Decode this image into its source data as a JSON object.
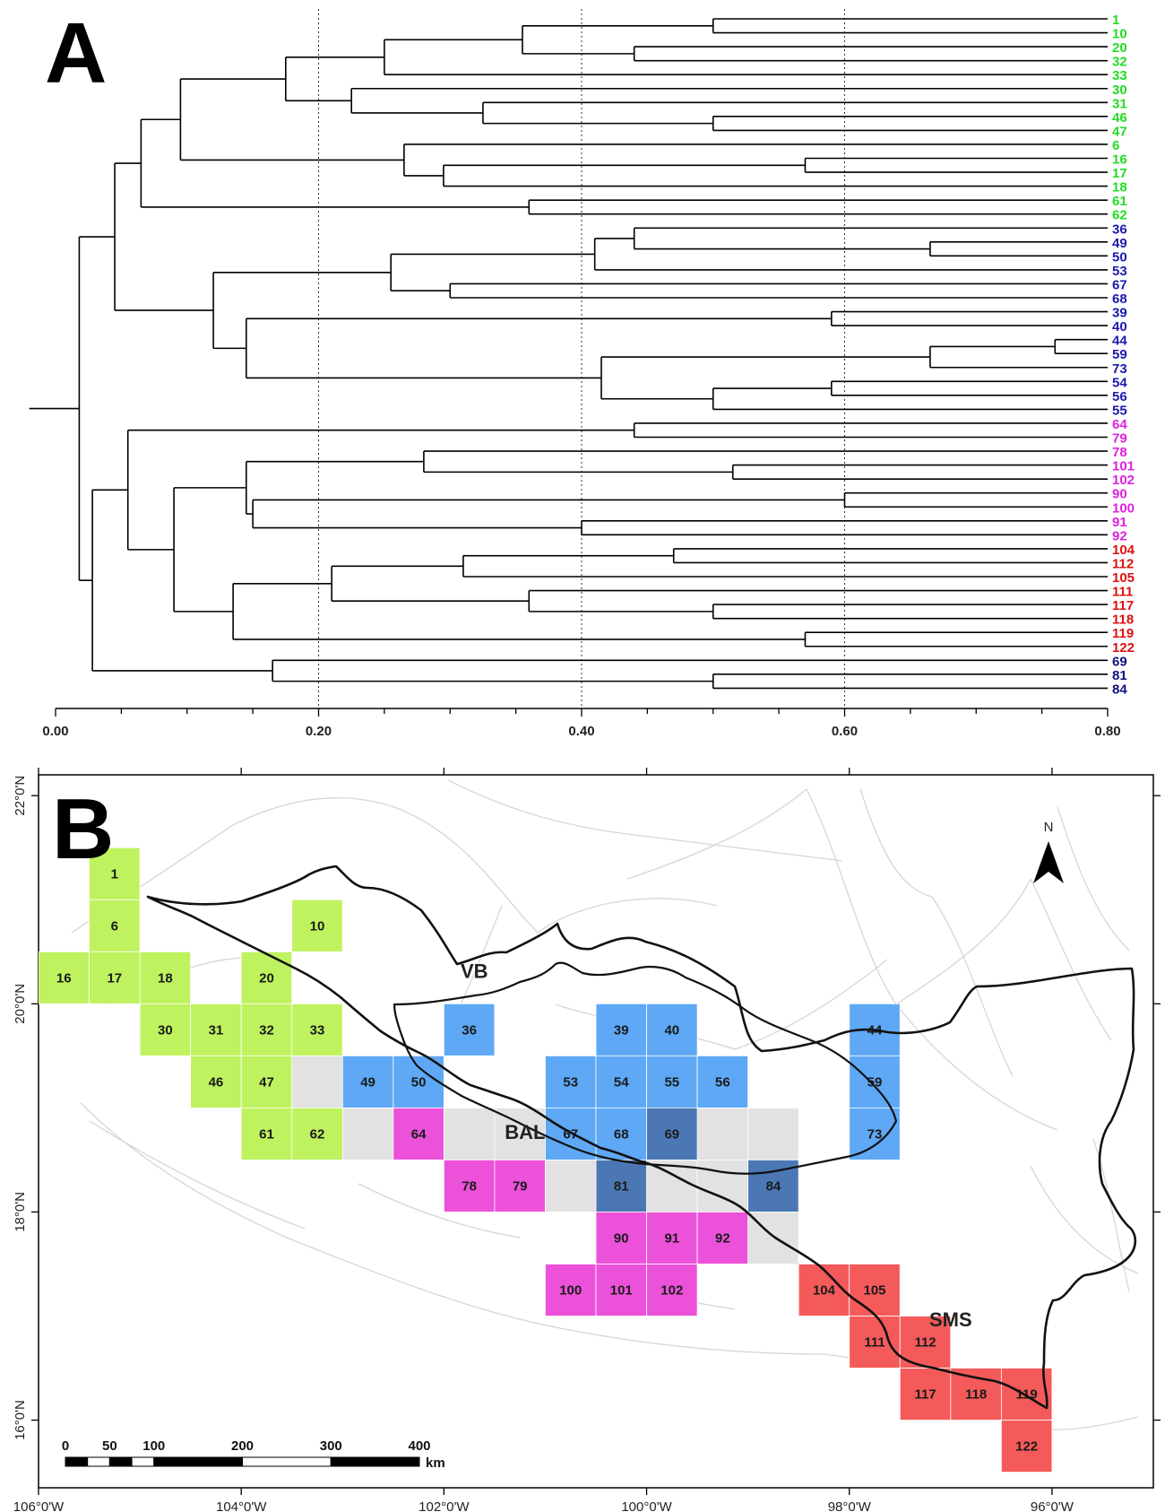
{
  "panel_a": {
    "letter": "A",
    "axis": {
      "ticks": [
        "0.00",
        "0.20",
        "0.40",
        "0.60",
        "0.80"
      ],
      "tick_values": [
        0,
        0.2,
        0.4,
        0.6,
        0.8
      ],
      "dotted_at": [
        0.2,
        0.4,
        0.6
      ],
      "range": [
        0,
        0.8
      ]
    },
    "leaves": [
      {
        "id": "1",
        "group": "green"
      },
      {
        "id": "10",
        "group": "green"
      },
      {
        "id": "20",
        "group": "green"
      },
      {
        "id": "32",
        "group": "green"
      },
      {
        "id": "33",
        "group": "green"
      },
      {
        "id": "30",
        "group": "green"
      },
      {
        "id": "31",
        "group": "green"
      },
      {
        "id": "46",
        "group": "green"
      },
      {
        "id": "47",
        "group": "green"
      },
      {
        "id": "6",
        "group": "green"
      },
      {
        "id": "16",
        "group": "green"
      },
      {
        "id": "17",
        "group": "green"
      },
      {
        "id": "18",
        "group": "green"
      },
      {
        "id": "61",
        "group": "green"
      },
      {
        "id": "62",
        "group": "green"
      },
      {
        "id": "36",
        "group": "blue"
      },
      {
        "id": "49",
        "group": "blue"
      },
      {
        "id": "50",
        "group": "blue"
      },
      {
        "id": "53",
        "group": "blue"
      },
      {
        "id": "67",
        "group": "blue"
      },
      {
        "id": "68",
        "group": "blue"
      },
      {
        "id": "39",
        "group": "blue"
      },
      {
        "id": "40",
        "group": "blue"
      },
      {
        "id": "44",
        "group": "blue"
      },
      {
        "id": "59",
        "group": "blue"
      },
      {
        "id": "73",
        "group": "blue"
      },
      {
        "id": "54",
        "group": "blue"
      },
      {
        "id": "56",
        "group": "blue"
      },
      {
        "id": "55",
        "group": "blue"
      },
      {
        "id": "64",
        "group": "magenta"
      },
      {
        "id": "79",
        "group": "magenta"
      },
      {
        "id": "78",
        "group": "magenta"
      },
      {
        "id": "101",
        "group": "magenta"
      },
      {
        "id": "102",
        "group": "magenta"
      },
      {
        "id": "90",
        "group": "magenta"
      },
      {
        "id": "100",
        "group": "magenta"
      },
      {
        "id": "91",
        "group": "magenta"
      },
      {
        "id": "92",
        "group": "magenta"
      },
      {
        "id": "104",
        "group": "red"
      },
      {
        "id": "112",
        "group": "red"
      },
      {
        "id": "105",
        "group": "red"
      },
      {
        "id": "111",
        "group": "red"
      },
      {
        "id": "117",
        "group": "red"
      },
      {
        "id": "118",
        "group": "red"
      },
      {
        "id": "119",
        "group": "red"
      },
      {
        "id": "122",
        "group": "red"
      },
      {
        "id": "69",
        "group": "navy"
      },
      {
        "id": "81",
        "group": "navy"
      },
      {
        "id": "84",
        "group": "navy"
      }
    ],
    "merges": [
      {
        "i": "1",
        "j": "10",
        "h": 0.5
      },
      {
        "i": "20",
        "j": "32",
        "h": 0.44
      },
      {
        "i": "M1",
        "j": "M2",
        "h": 0.355
      },
      {
        "i": "M3",
        "j": "33",
        "h": 0.25
      },
      {
        "i": "46",
        "j": "47",
        "h": 0.5
      },
      {
        "i": "31",
        "j": "M5",
        "h": 0.325
      },
      {
        "i": "30",
        "j": "M6",
        "h": 0.225
      },
      {
        "i": "M4",
        "j": "M7",
        "h": 0.175
      },
      {
        "i": "16",
        "j": "17",
        "h": 0.57
      },
      {
        "i": "M9",
        "j": "18",
        "h": 0.295
      },
      {
        "i": "6",
        "j": "M10",
        "h": 0.265
      },
      {
        "i": "M8",
        "j": "M11",
        "h": 0.095
      },
      {
        "i": "61",
        "j": "62",
        "h": 0.36
      },
      {
        "i": "M12",
        "j": "M13",
        "h": 0.065
      },
      {
        "i": "49",
        "j": "50",
        "h": 0.665
      },
      {
        "i": "36",
        "j": "M15",
        "h": 0.44
      },
      {
        "i": "M16",
        "j": "53",
        "h": 0.41
      },
      {
        "i": "67",
        "j": "68",
        "h": 0.3
      },
      {
        "i": "M17",
        "j": "M18",
        "h": 0.255
      },
      {
        "i": "39",
        "j": "40",
        "h": 0.59
      },
      {
        "i": "44",
        "j": "59",
        "h": 0.76
      },
      {
        "i": "M21",
        "j": "73",
        "h": 0.665
      },
      {
        "i": "54",
        "j": "56",
        "h": 0.59
      },
      {
        "i": "M23",
        "j": "55",
        "h": 0.5
      },
      {
        "i": "M22",
        "j": "M24",
        "h": 0.415
      },
      {
        "i": "M20",
        "j": "M25",
        "h": 0.145
      },
      {
        "i": "M19",
        "j": "M26",
        "h": 0.12
      },
      {
        "i": "M14",
        "j": "M27",
        "h": 0.045
      },
      {
        "i": "64",
        "j": "79",
        "h": 0.44
      },
      {
        "i": "101",
        "j": "102",
        "h": 0.515
      },
      {
        "i": "78",
        "j": "M30",
        "h": 0.28
      },
      {
        "i": "90",
        "j": "100",
        "h": 0.6
      },
      {
        "i": "91",
        "j": "92",
        "h": 0.4
      },
      {
        "i": "M32",
        "j": "M33",
        "h": 0.15
      },
      {
        "i": "M31",
        "j": "M34",
        "h": 0.145
      },
      {
        "i": "104",
        "j": "112",
        "h": 0.47
      },
      {
        "i": "M36",
        "j": "105",
        "h": 0.31
      },
      {
        "i": "117",
        "j": "118",
        "h": 0.5
      },
      {
        "i": "111",
        "j": "M38",
        "h": 0.36
      },
      {
        "i": "M37",
        "j": "M39",
        "h": 0.21
      },
      {
        "i": "119",
        "j": "122",
        "h": 0.57
      },
      {
        "i": "M40",
        "j": "M41",
        "h": 0.135
      },
      {
        "i": "M35",
        "j": "M42",
        "h": 0.09
      },
      {
        "i": "M29",
        "j": "M43",
        "h": 0.055
      },
      {
        "i": "81",
        "j": "84",
        "h": 0.5
      },
      {
        "i": "69",
        "j": "M45",
        "h": 0.165
      },
      {
        "i": "M44",
        "j": "M46",
        "h": 0.028
      },
      {
        "i": "M28",
        "j": "M47",
        "h": 0.018
      }
    ],
    "root_stub_to": -0.02
  },
  "panel_b": {
    "letter": "B",
    "north_label": "N",
    "lon_labels": [
      "106°0'W",
      "104°0'W",
      "102°0'W",
      "100°0'W",
      "98°0'W",
      "96°0'W"
    ],
    "lat_labels": [
      "22°0'N",
      "20°0'N",
      "18°0'N",
      "16°0'N"
    ],
    "lon_range": [
      -106,
      -95
    ],
    "lat_range": [
      15.35,
      22.2
    ],
    "regions": [
      {
        "label": "VB",
        "lon": -101.7,
        "lat": 20.25
      },
      {
        "label": "BAL",
        "lon": -101.2,
        "lat": 18.7
      },
      {
        "label": "SMS",
        "lon": -97.0,
        "lat": 16.9
      }
    ],
    "scale": {
      "labels": [
        "0",
        "50",
        "100",
        "200",
        "300",
        "400"
      ],
      "km": [
        0,
        50,
        100,
        200,
        300,
        400
      ],
      "unit": "km"
    },
    "cell_size_deg": 0.5,
    "cells": [
      {
        "label": "1",
        "col": 0,
        "row": 0,
        "group": "green"
      },
      {
        "label": "6",
        "col": 0,
        "row": 1,
        "group": "green"
      },
      {
        "label": "10",
        "col": 4,
        "row": 1,
        "group": "green"
      },
      {
        "label": "16",
        "col": -1,
        "row": 2,
        "group": "green"
      },
      {
        "label": "17",
        "col": 0,
        "row": 2,
        "group": "green"
      },
      {
        "label": "18",
        "col": 1,
        "row": 2,
        "group": "green"
      },
      {
        "label": "20",
        "col": 3,
        "row": 2,
        "group": "green"
      },
      {
        "label": "30",
        "col": 1,
        "row": 3,
        "group": "green"
      },
      {
        "label": "31",
        "col": 2,
        "row": 3,
        "group": "green"
      },
      {
        "label": "32",
        "col": 3,
        "row": 3,
        "group": "green"
      },
      {
        "label": "33",
        "col": 4,
        "row": 3,
        "group": "green"
      },
      {
        "label": "46",
        "col": 2,
        "row": 4,
        "group": "green"
      },
      {
        "label": "47",
        "col": 3,
        "row": 4,
        "group": "green"
      },
      {
        "label": "61",
        "col": 3,
        "row": 5,
        "group": "green"
      },
      {
        "label": "62",
        "col": 4,
        "row": 5,
        "group": "green"
      },
      {
        "label": "36",
        "col": 7,
        "row": 3,
        "group": "blue"
      },
      {
        "label": "39",
        "col": 10,
        "row": 3,
        "group": "blue"
      },
      {
        "label": "40",
        "col": 11,
        "row": 3,
        "group": "blue"
      },
      {
        "label": "44",
        "col": 15,
        "row": 3,
        "group": "blue"
      },
      {
        "label": "49",
        "col": 5,
        "row": 4,
        "group": "blue"
      },
      {
        "label": "50",
        "col": 6,
        "row": 4,
        "group": "blue"
      },
      {
        "label": "53",
        "col": 9,
        "row": 4,
        "group": "blue"
      },
      {
        "label": "54",
        "col": 10,
        "row": 4,
        "group": "blue"
      },
      {
        "label": "55",
        "col": 11,
        "row": 4,
        "group": "blue"
      },
      {
        "label": "56",
        "col": 12,
        "row": 4,
        "group": "blue"
      },
      {
        "label": "59",
        "col": 15,
        "row": 4,
        "group": "blue"
      },
      {
        "label": "64",
        "col": 6,
        "row": 5,
        "group": "magenta"
      },
      {
        "label": "67",
        "col": 9,
        "row": 5,
        "group": "blue"
      },
      {
        "label": "68",
        "col": 10,
        "row": 5,
        "group": "blue"
      },
      {
        "label": "69",
        "col": 11,
        "row": 5,
        "group": "navy"
      },
      {
        "label": "73",
        "col": 15,
        "row": 5,
        "group": "blue"
      },
      {
        "label": "78",
        "col": 7,
        "row": 6,
        "group": "magenta"
      },
      {
        "label": "79",
        "col": 8,
        "row": 6,
        "group": "magenta"
      },
      {
        "label": "81",
        "col": 10,
        "row": 6,
        "group": "navy"
      },
      {
        "label": "84",
        "col": 13,
        "row": 6,
        "group": "navy"
      },
      {
        "label": "90",
        "col": 10,
        "row": 7,
        "group": "magenta"
      },
      {
        "label": "91",
        "col": 11,
        "row": 7,
        "group": "magenta"
      },
      {
        "label": "92",
        "col": 12,
        "row": 7,
        "group": "magenta"
      },
      {
        "label": "100",
        "col": 9,
        "row": 8,
        "group": "magenta"
      },
      {
        "label": "101",
        "col": 10,
        "row": 8,
        "group": "magenta"
      },
      {
        "label": "102",
        "col": 11,
        "row": 8,
        "group": "magenta"
      },
      {
        "label": "104",
        "col": 14,
        "row": 8,
        "group": "red"
      },
      {
        "label": "105",
        "col": 15,
        "row": 8,
        "group": "red"
      },
      {
        "label": "111",
        "col": 15,
        "row": 9,
        "group": "red"
      },
      {
        "label": "112",
        "col": 16,
        "row": 9,
        "group": "red"
      },
      {
        "label": "117",
        "col": 16,
        "row": 10,
        "group": "red"
      },
      {
        "label": "118",
        "col": 17,
        "row": 10,
        "group": "red"
      },
      {
        "label": "119",
        "col": 18,
        "row": 10,
        "group": "red"
      },
      {
        "label": "122",
        "col": 18,
        "row": 11,
        "group": "red"
      }
    ],
    "gray_cells": [
      {
        "col": 4,
        "row": 4
      },
      {
        "col": 5,
        "row": 5
      },
      {
        "col": 7,
        "row": 5
      },
      {
        "col": 8,
        "row": 5
      },
      {
        "col": 12,
        "row": 5
      },
      {
        "col": 13,
        "row": 5
      },
      {
        "col": 9,
        "row": 6
      },
      {
        "col": 11,
        "row": 6
      },
      {
        "col": 12,
        "row": 6
      },
      {
        "col": 13,
        "row": 7
      }
    ],
    "grid_origin": {
      "lon": -105.5,
      "lat": 21.0
    }
  },
  "colors": {
    "green": "#22dd22",
    "blue": "#1a1ab0",
    "magenta": "#dd22dd",
    "red": "#dd1111",
    "navy": "#101080",
    "cell_green": "#bff25f",
    "cell_blue": "#5ea8f5",
    "cell_navy": "#4b78b5",
    "cell_magenta": "#ec52d9",
    "cell_red": "#f45a5a",
    "cell_gray": "#e2e2e2",
    "tree": "#000000",
    "background_lines": "#d6d6d6"
  }
}
